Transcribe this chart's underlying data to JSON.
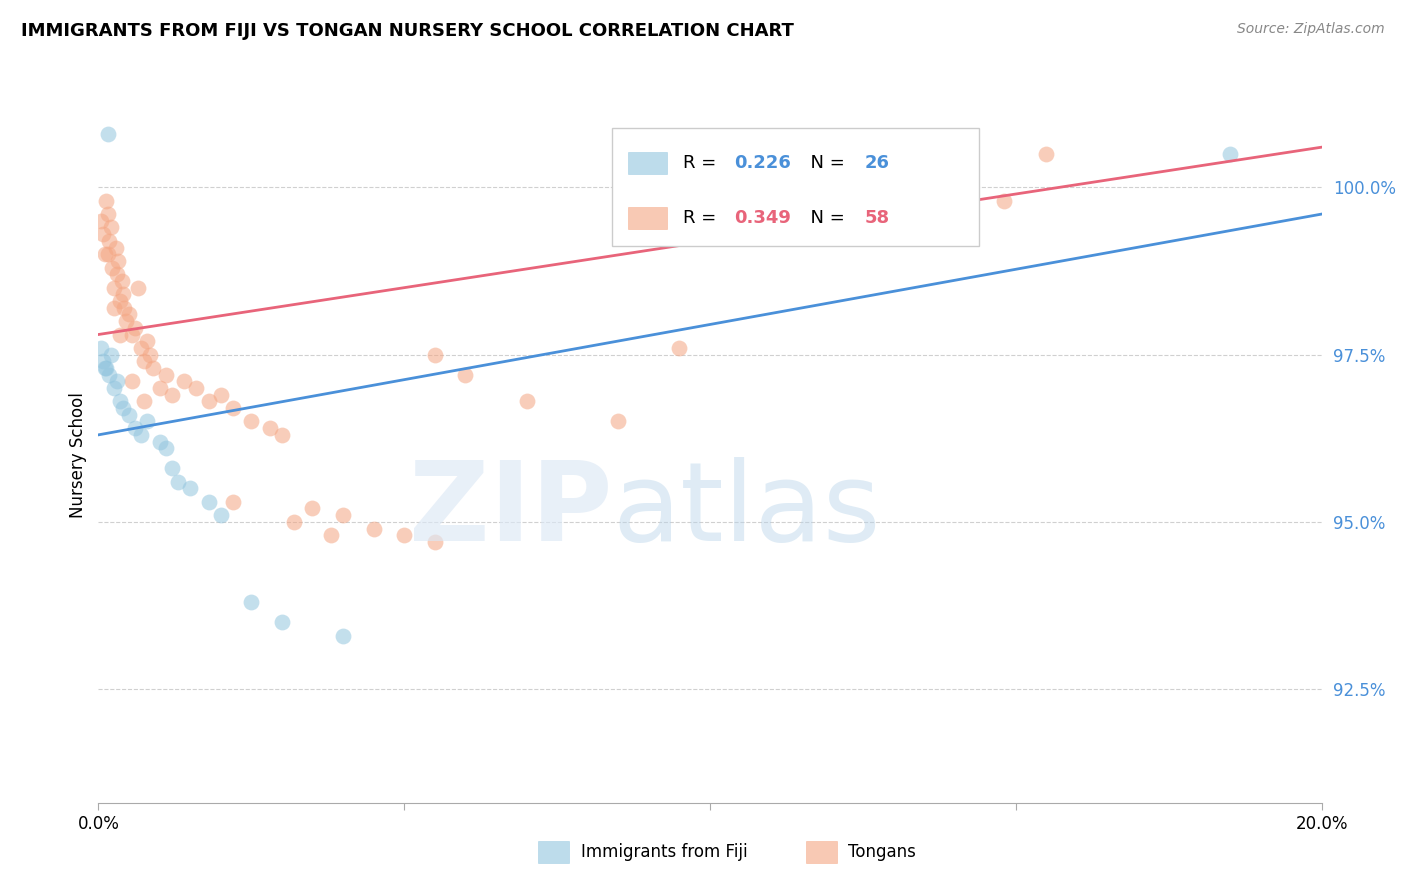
{
  "title": "IMMIGRANTS FROM FIJI VS TONGAN NURSERY SCHOOL CORRELATION CHART",
  "source": "Source: ZipAtlas.com",
  "ylabel": "Nursery School",
  "xlim": [
    0.0,
    20.0
  ],
  "ylim": [
    90.8,
    101.2
  ],
  "fiji_R": "0.226",
  "fiji_N": "26",
  "tongan_R": "0.349",
  "tongan_N": "58",
  "fiji_color": "#92c5de",
  "tongan_color": "#f4a582",
  "fiji_line_color": "#4a90d9",
  "tongan_line_color": "#e8647a",
  "fiji_points_x": [
    0.05,
    0.08,
    0.12,
    0.15,
    0.18,
    0.2,
    0.25,
    0.3,
    0.35,
    0.4,
    0.5,
    0.6,
    0.7,
    0.8,
    1.0,
    1.1,
    1.2,
    1.3,
    1.5,
    1.8,
    2.0,
    2.5,
    3.0,
    4.0,
    18.5,
    0.1
  ],
  "fiji_points_y": [
    97.6,
    97.4,
    97.3,
    100.8,
    97.2,
    97.5,
    97.0,
    97.1,
    96.8,
    96.7,
    96.6,
    96.4,
    96.3,
    96.5,
    96.2,
    96.1,
    95.8,
    95.6,
    95.5,
    95.3,
    95.1,
    93.8,
    93.5,
    93.3,
    100.5,
    97.3
  ],
  "tongan_points_x": [
    0.05,
    0.08,
    0.1,
    0.12,
    0.15,
    0.18,
    0.2,
    0.22,
    0.25,
    0.28,
    0.3,
    0.32,
    0.35,
    0.38,
    0.4,
    0.42,
    0.45,
    0.5,
    0.55,
    0.6,
    0.65,
    0.7,
    0.75,
    0.8,
    0.85,
    0.9,
    1.0,
    1.1,
    1.2,
    1.4,
    1.6,
    1.8,
    2.0,
    2.2,
    2.5,
    2.8,
    3.0,
    3.2,
    3.5,
    4.0,
    4.5,
    5.0,
    5.5,
    6.0,
    7.0,
    8.5,
    14.2,
    14.8,
    15.5,
    0.15,
    0.25,
    0.35,
    0.55,
    0.75,
    2.2,
    3.8,
    5.5,
    9.5
  ],
  "tongan_points_y": [
    99.5,
    99.3,
    99.0,
    99.8,
    99.6,
    99.2,
    99.4,
    98.8,
    98.5,
    99.1,
    98.7,
    98.9,
    98.3,
    98.6,
    98.4,
    98.2,
    98.0,
    98.1,
    97.8,
    97.9,
    98.5,
    97.6,
    97.4,
    97.7,
    97.5,
    97.3,
    97.0,
    97.2,
    96.9,
    97.1,
    97.0,
    96.8,
    96.9,
    96.7,
    96.5,
    96.4,
    96.3,
    95.0,
    95.2,
    95.1,
    94.9,
    94.8,
    97.5,
    97.2,
    96.8,
    96.5,
    100.3,
    99.8,
    100.5,
    99.0,
    98.2,
    97.8,
    97.1,
    96.8,
    95.3,
    94.8,
    94.7,
    97.6
  ],
  "fiji_line_x0": 0.0,
  "fiji_line_y0": 96.3,
  "fiji_line_x1": 20.0,
  "fiji_line_y1": 99.6,
  "tongan_line_x0": 0.0,
  "tongan_line_y0": 97.8,
  "tongan_line_x1": 20.0,
  "tongan_line_y1": 100.6,
  "ytick_vals": [
    92.5,
    95.0,
    97.5,
    100.0
  ],
  "ytick_labels": [
    "92.5%",
    "95.0%",
    "97.5%",
    "100.0%"
  ],
  "xtick_vals": [
    0,
    5,
    10,
    15,
    20
  ],
  "background_color": "#ffffff",
  "grid_color": "#d0d0d0"
}
